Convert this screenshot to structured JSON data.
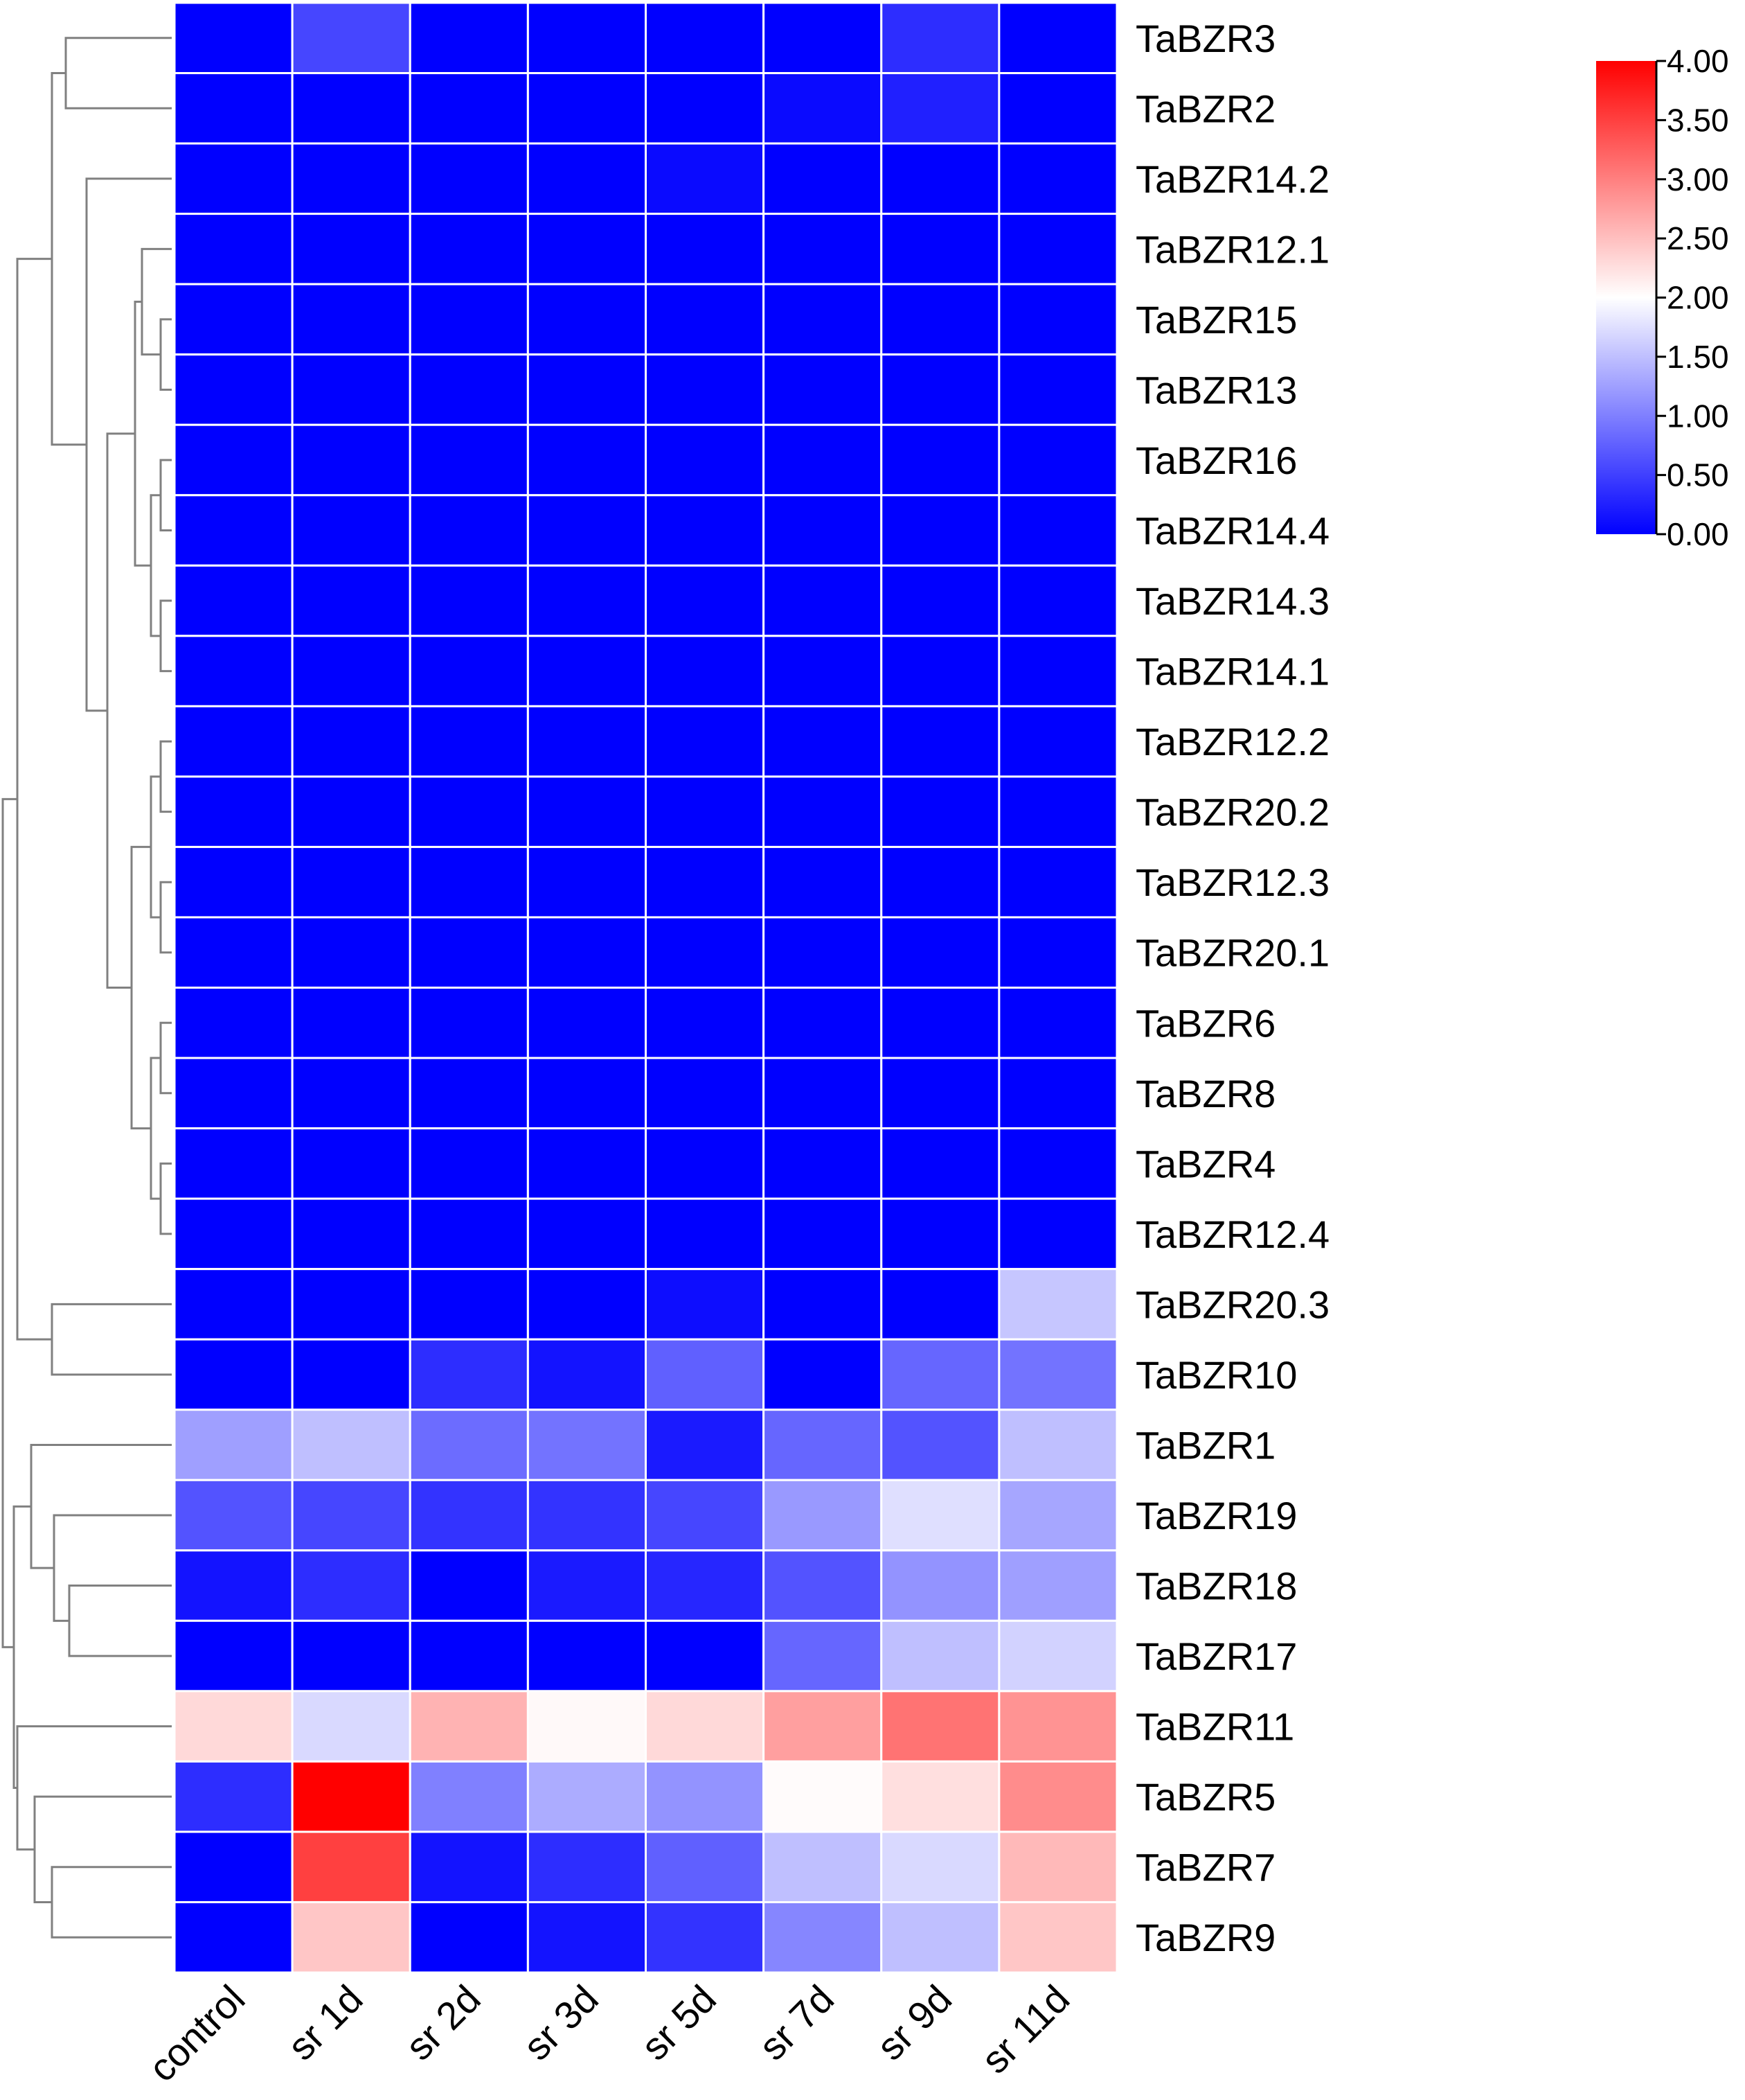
{
  "chart_data": {
    "type": "heatmap",
    "title": "",
    "xlabel": "",
    "ylabel": "",
    "columns": [
      "control",
      "sr 1d",
      "sr 2d",
      "sr 3d",
      "sr 5d",
      "sr 7d",
      "sr 9d",
      "sr 11d"
    ],
    "rows": [
      "TaBZR3",
      "TaBZR2",
      "TaBZR14.2",
      "TaBZR12.1",
      "TaBZR15",
      "TaBZR13",
      "TaBZR16",
      "TaBZR14.4",
      "TaBZR14.3",
      "TaBZR14.1",
      "TaBZR12.2",
      "TaBZR20.2",
      "TaBZR12.3",
      "TaBZR20.1",
      "TaBZR6",
      "TaBZR8",
      "TaBZR4",
      "TaBZR12.4",
      "TaBZR20.3",
      "TaBZR10",
      "TaBZR1",
      "TaBZR19",
      "TaBZR18",
      "TaBZR17",
      "TaBZR11",
      "TaBZR5",
      "TaBZR7",
      "TaBZR9"
    ],
    "values": [
      [
        0.0,
        0.55,
        0.0,
        0.0,
        0.0,
        0.0,
        0.35,
        0.0
      ],
      [
        0.0,
        0.0,
        0.0,
        0.0,
        0.0,
        0.08,
        0.25,
        0.0
      ],
      [
        0.0,
        0.0,
        0.0,
        0.0,
        0.08,
        0.0,
        0.0,
        0.0
      ],
      [
        0.0,
        0.0,
        0.0,
        0.0,
        0.0,
        0.0,
        0.0,
        0.0
      ],
      [
        0.0,
        0.0,
        0.0,
        0.0,
        0.0,
        0.0,
        0.0,
        0.0
      ],
      [
        0.0,
        0.0,
        0.0,
        0.0,
        0.0,
        0.0,
        0.0,
        0.0
      ],
      [
        0.0,
        0.0,
        0.0,
        0.0,
        0.0,
        0.0,
        0.0,
        0.0
      ],
      [
        0.0,
        0.0,
        0.0,
        0.0,
        0.0,
        0.0,
        0.0,
        0.0
      ],
      [
        0.0,
        0.0,
        0.0,
        0.0,
        0.0,
        0.0,
        0.0,
        0.0
      ],
      [
        0.0,
        0.0,
        0.0,
        0.0,
        0.0,
        0.0,
        0.0,
        0.0
      ],
      [
        0.0,
        0.0,
        0.0,
        0.0,
        0.0,
        0.0,
        0.0,
        0.0
      ],
      [
        0.0,
        0.0,
        0.0,
        0.0,
        0.0,
        0.0,
        0.0,
        0.0
      ],
      [
        0.0,
        0.0,
        0.0,
        0.0,
        0.0,
        0.0,
        0.0,
        0.0
      ],
      [
        0.0,
        0.0,
        0.0,
        0.0,
        0.0,
        0.0,
        0.0,
        0.0
      ],
      [
        0.0,
        0.0,
        0.0,
        0.0,
        0.0,
        0.0,
        0.0,
        0.0
      ],
      [
        0.0,
        0.0,
        0.0,
        0.0,
        0.0,
        0.0,
        0.0,
        0.0
      ],
      [
        0.0,
        0.0,
        0.0,
        0.0,
        0.0,
        0.0,
        0.0,
        0.0
      ],
      [
        0.0,
        0.0,
        0.0,
        0.0,
        0.0,
        0.0,
        0.0,
        0.0
      ],
      [
        0.0,
        0.0,
        0.0,
        0.0,
        0.1,
        0.0,
        0.0,
        1.55
      ],
      [
        0.0,
        0.0,
        0.35,
        0.15,
        0.75,
        0.0,
        0.8,
        0.9
      ],
      [
        1.25,
        1.5,
        0.85,
        0.9,
        0.2,
        0.8,
        0.65,
        1.5
      ],
      [
        0.65,
        0.55,
        0.4,
        0.4,
        0.55,
        1.2,
        1.75,
        1.3
      ],
      [
        0.15,
        0.35,
        0.0,
        0.2,
        0.3,
        0.65,
        1.15,
        1.25
      ],
      [
        0.0,
        0.0,
        0.0,
        0.0,
        0.0,
        0.8,
        1.5,
        1.65
      ],
      [
        2.3,
        1.7,
        2.6,
        2.05,
        2.3,
        2.75,
        3.1,
        2.85
      ],
      [
        0.35,
        4.0,
        1.0,
        1.35,
        1.15,
        2.03,
        2.25,
        2.9
      ],
      [
        0.0,
        3.5,
        0.15,
        0.35,
        0.75,
        1.5,
        1.7,
        2.55
      ],
      [
        0.0,
        2.45,
        0.0,
        0.15,
        0.4,
        1.05,
        1.5,
        2.45
      ]
    ],
    "colorscale": {
      "min": 0.0,
      "mid": 2.0,
      "max": 4.0,
      "colors": [
        "#0000ff",
        "#ffffff",
        "#ff0000"
      ],
      "ticks": [
        "0.00",
        "0.50",
        "1.00",
        "1.50",
        "2.00",
        "2.50",
        "3.00",
        "3.50",
        "4.00"
      ]
    },
    "grid": true,
    "dendrogram": "left",
    "legend": "colorbar top-right",
    "colors": {
      "cell_border": "#ffffff",
      "dendrogram_line": "#808080"
    }
  }
}
